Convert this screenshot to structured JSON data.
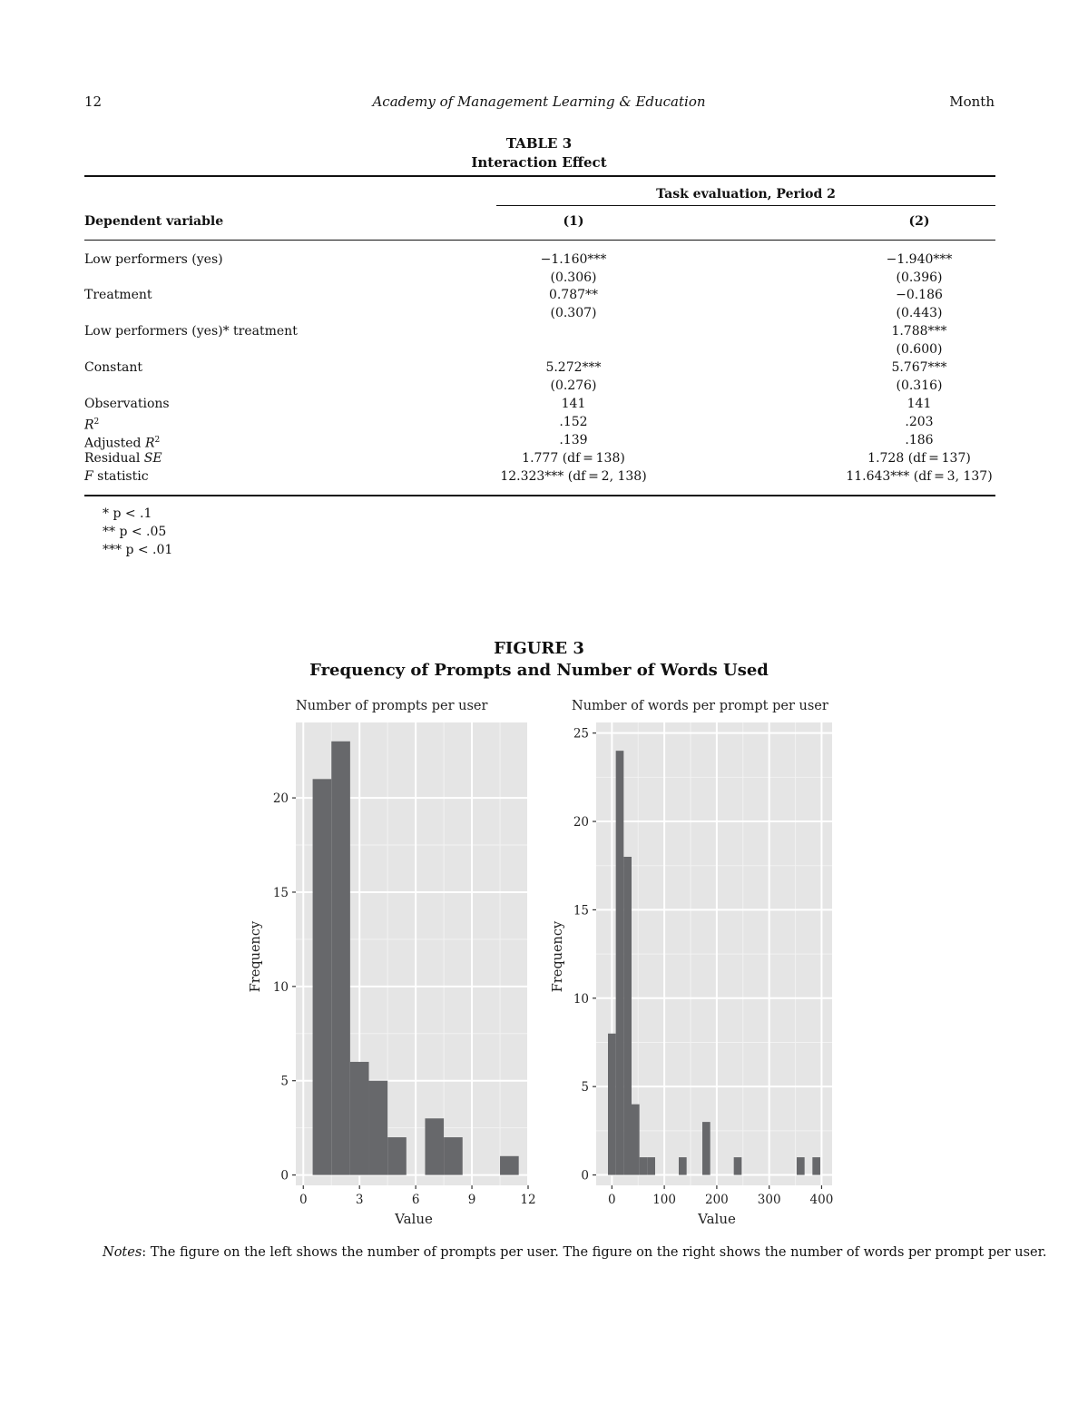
{
  "page_header": {
    "page_number": "12",
    "journal": "Academy of Management Learning & Education",
    "month": "Month"
  },
  "table": {
    "label": "TABLE 3",
    "title": "Interaction Effect",
    "spanner": "Task evaluation, Period 2",
    "dep_var_label": "Dependent variable",
    "col1": "(1)",
    "col2": "(2)",
    "rows": [
      {
        "label": "Low performers (yes)",
        "c1": "−1.160***",
        "c1_se": "(0.306)",
        "c2": "−1.940***",
        "c2_se": "(0.396)"
      },
      {
        "label": "Treatment",
        "c1": "0.787**",
        "c1_se": "(0.307)",
        "c2": "−0.186",
        "c2_se": "(0.443)"
      },
      {
        "label": "Low performers (yes)* treatment",
        "c1": "",
        "c1_se": "",
        "c2": "1.788***",
        "c2_se": "(0.600)"
      },
      {
        "label": "Constant",
        "c1": "5.272***",
        "c1_se": "(0.276)",
        "c2": "5.767***",
        "c2_se": "(0.316)"
      }
    ],
    "stats": {
      "observations": {
        "label": "Observations",
        "c1": "141",
        "c2": "141"
      },
      "r2": {
        "label_pre": "R",
        "label_sup": "2",
        "c1": ".152",
        "c2": ".203"
      },
      "adj_r2": {
        "label_pre": "Adjusted ",
        "label_it": "R",
        "label_sup": "2",
        "c1": ".139",
        "c2": ".186"
      },
      "resid_se": {
        "label_pre": "Residual ",
        "label_it": "SE",
        "c1": "1.777 (df = 138)",
        "c2": "1.728 (df = 137)"
      },
      "f_stat": {
        "label_it": "F",
        "label_post": " statistic",
        "c1": "12.323*** (df = 2, 138)",
        "c2": "11.643*** (df = 3, 137)"
      }
    },
    "footnotes": [
      "*  p < .1",
      "**  p < .05",
      "***  p < .01"
    ]
  },
  "figure": {
    "label": "FIGURE 3",
    "title": "Frequency of Prompts and Number of Words Used",
    "notes_label": "Notes",
    "notes_text": ": The figure on the left shows the number of prompts per user. The figure on the right shows the number of words per prompt per user."
  },
  "chart_data": [
    {
      "type": "bar",
      "title": "Number of prompts per user",
      "xlabel": "Value",
      "ylabel": "Frequency",
      "xlim": [
        -0.4,
        12
      ],
      "ylim": [
        0,
        23
      ],
      "xticks": [
        0,
        3,
        6,
        9,
        12
      ],
      "yticks": [
        0,
        5,
        10,
        15,
        20
      ],
      "bin_width": 1,
      "bins": [
        {
          "x": 1,
          "count": 21
        },
        {
          "x": 2,
          "count": 23
        },
        {
          "x": 3,
          "count": 6
        },
        {
          "x": 4,
          "count": 5
        },
        {
          "x": 5,
          "count": 2
        },
        {
          "x": 7,
          "count": 3
        },
        {
          "x": 8,
          "count": 2
        },
        {
          "x": 11,
          "count": 1
        }
      ],
      "bar_color": "#67686b",
      "panel_bg": "#e5e5e5"
    },
    {
      "type": "bar",
      "title": "Number of words per prompt per user",
      "xlabel": "Value",
      "ylabel": "Frequency",
      "xlim": [
        -30,
        420
      ],
      "ylim": [
        0,
        25
      ],
      "xticks": [
        0,
        100,
        200,
        300,
        400
      ],
      "yticks": [
        0,
        5,
        10,
        15,
        20,
        25
      ],
      "bin_width": 15,
      "bins": [
        {
          "x": 0,
          "count": 8
        },
        {
          "x": 15,
          "count": 24
        },
        {
          "x": 30,
          "count": 18
        },
        {
          "x": 45,
          "count": 4
        },
        {
          "x": 60,
          "count": 1
        },
        {
          "x": 75,
          "count": 1
        },
        {
          "x": 135,
          "count": 1
        },
        {
          "x": 180,
          "count": 3
        },
        {
          "x": 240,
          "count": 1
        },
        {
          "x": 360,
          "count": 1
        },
        {
          "x": 390,
          "count": 1
        }
      ],
      "bar_color": "#67686b",
      "panel_bg": "#e5e5e5"
    }
  ]
}
